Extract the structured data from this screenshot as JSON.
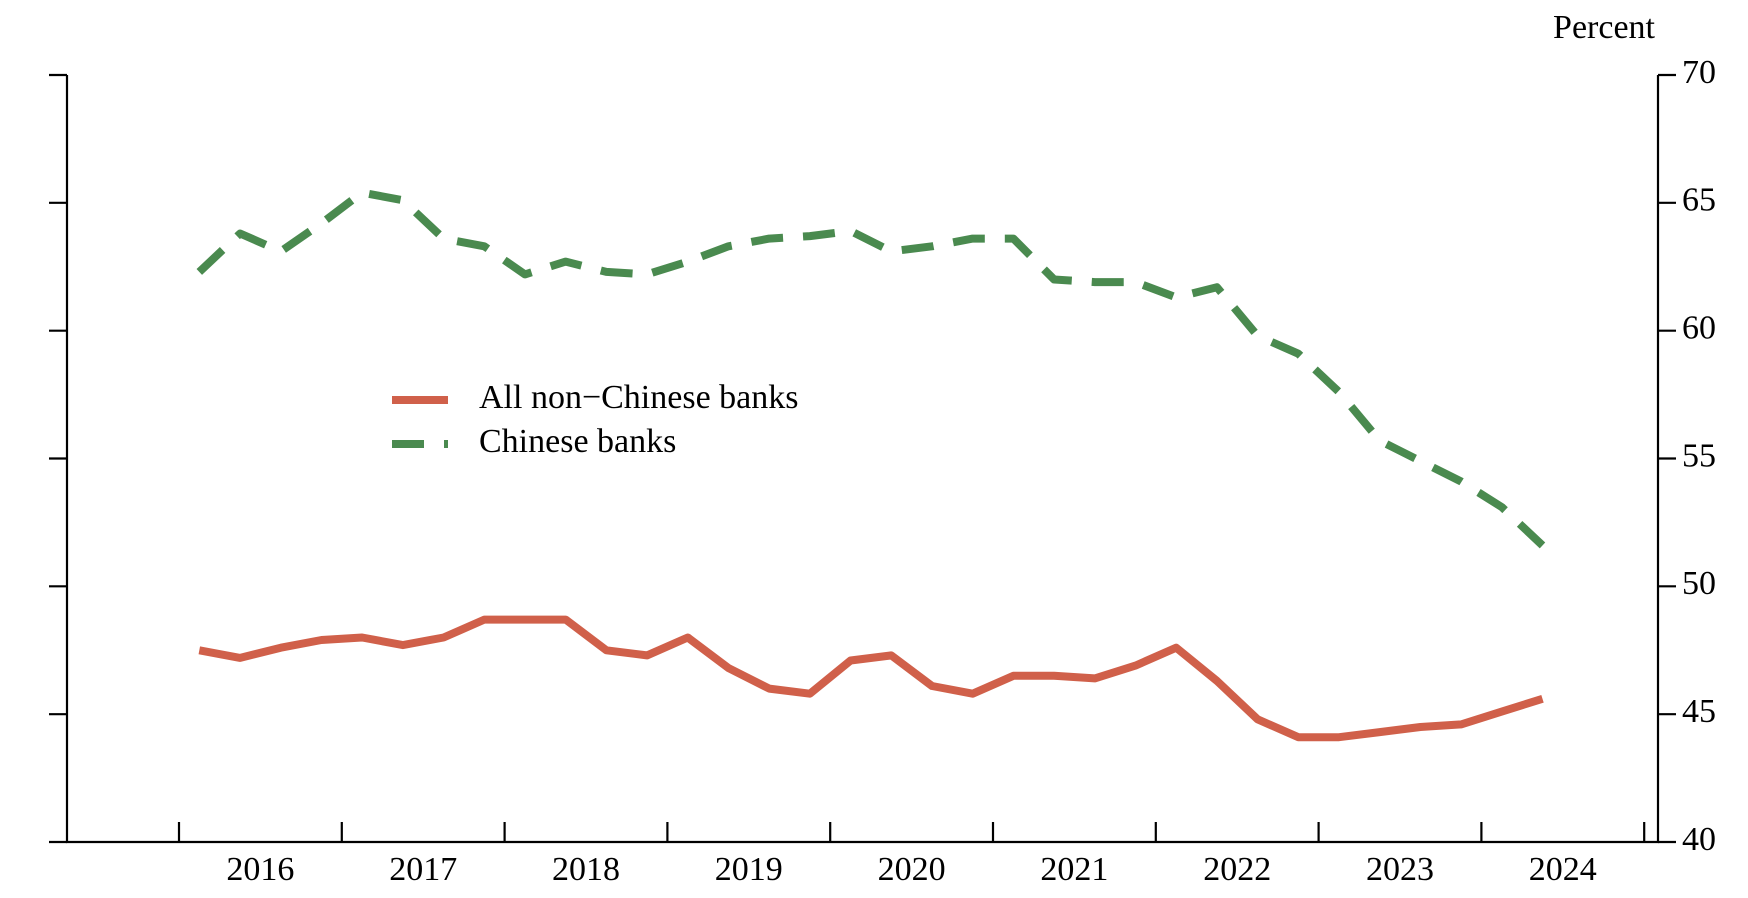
{
  "chart_data": {
    "type": "line",
    "y_axis_label": "Percent",
    "categories": [
      null,
      null,
      null,
      null,
      null,
      null,
      null,
      null,
      null,
      null,
      null,
      null,
      null,
      null,
      null,
      null,
      null,
      null,
      null,
      null,
      null,
      null,
      null,
      null,
      null,
      null,
      null,
      null,
      null,
      null,
      null,
      null,
      null,
      null
    ],
    "xticks": [
      2016,
      2017,
      2018,
      2019,
      2020,
      2021,
      2022,
      2023,
      2024
    ],
    "series": [
      {
        "name": "All non−Chinese banks",
        "color": "#d0604a",
        "dash": false,
        "values": [
          47.5,
          47.2,
          47.6,
          47.9,
          48.0,
          47.7,
          48.0,
          48.7,
          48.7,
          48.7,
          47.5,
          47.3,
          48.0,
          46.8,
          46.0,
          45.8,
          47.1,
          47.3,
          46.1,
          45.8,
          46.5,
          46.5,
          46.4,
          46.9,
          47.6,
          46.3,
          44.8,
          44.1,
          44.1,
          44.3,
          44.5,
          44.6,
          45.1,
          45.6
        ]
      },
      {
        "name": "Chinese banks",
        "color": "#4a8a4f",
        "dash": true,
        "values": [
          62.3,
          63.8,
          63.1,
          64.2,
          65.4,
          65.1,
          63.6,
          63.3,
          62.2,
          62.7,
          62.3,
          62.2,
          62.7,
          63.3,
          63.6,
          63.7,
          63.9,
          63.1,
          63.3,
          63.6,
          63.6,
          62.0,
          61.9,
          61.9,
          61.3,
          61.7,
          59.8,
          59.1,
          57.6,
          55.7,
          54.9,
          54.1,
          53.1,
          51.6
        ]
      }
    ],
    "ylim": [
      40,
      70
    ],
    "yticks": [
      40,
      45,
      50,
      55,
      60,
      65,
      70
    ]
  }
}
